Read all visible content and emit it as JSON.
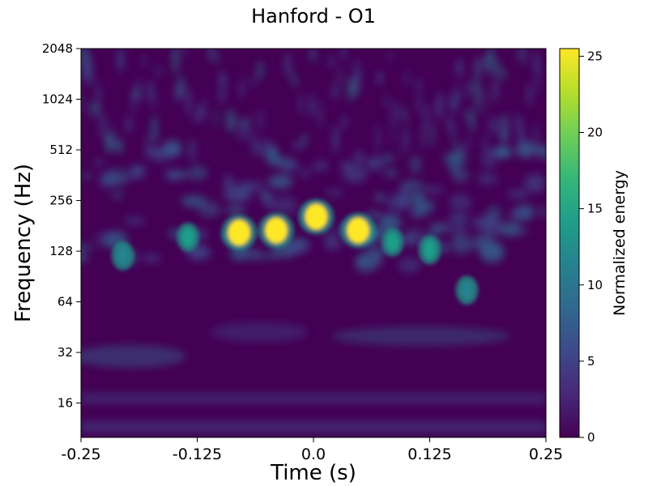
{
  "chart_data": {
    "type": "heatmap",
    "title": "Hanford - O1",
    "xlabel": "Time (s)",
    "ylabel": "Frequency (Hz)",
    "xlim": [
      -0.25,
      0.25
    ],
    "ylim": [
      10,
      2048
    ],
    "yscale": "log2",
    "x_ticks": [
      -0.25,
      -0.125,
      0.0,
      0.125,
      0.25
    ],
    "x_tick_labels": [
      "-0.25",
      "-0.125",
      "0.0",
      "0.125",
      "0.25"
    ],
    "y_ticks": [
      16,
      32,
      64,
      128,
      256,
      512,
      1024,
      2048
    ],
    "y_tick_labels": [
      "16",
      "32",
      "64",
      "128",
      "256",
      "512",
      "1024",
      "2048"
    ],
    "colorbar": {
      "label": "Normalized energy",
      "range": [
        0,
        25.5
      ],
      "ticks": [
        0,
        5,
        10,
        15,
        20,
        25
      ],
      "tick_labels": [
        "0",
        "5",
        "10",
        "15",
        "20",
        "25"
      ],
      "colormap": [
        "#440154",
        "#482878",
        "#3e4989",
        "#31688e",
        "#26828e",
        "#1f9e89",
        "#35b779",
        "#6ece58",
        "#b5de2b",
        "#fde725"
      ]
    },
    "hotspots": [
      {
        "t": -0.205,
        "f": 120,
        "energy": 12
      },
      {
        "t": -0.135,
        "f": 155,
        "energy": 14
      },
      {
        "t": -0.08,
        "f": 165,
        "energy": 25
      },
      {
        "t": -0.04,
        "f": 170,
        "energy": 25
      },
      {
        "t": 0.003,
        "f": 205,
        "energy": 25
      },
      {
        "t": 0.048,
        "f": 170,
        "energy": 25
      },
      {
        "t": 0.085,
        "f": 145,
        "energy": 14
      },
      {
        "t": 0.125,
        "f": 130,
        "energy": 15
      },
      {
        "t": 0.165,
        "f": 75,
        "energy": 10
      }
    ]
  }
}
